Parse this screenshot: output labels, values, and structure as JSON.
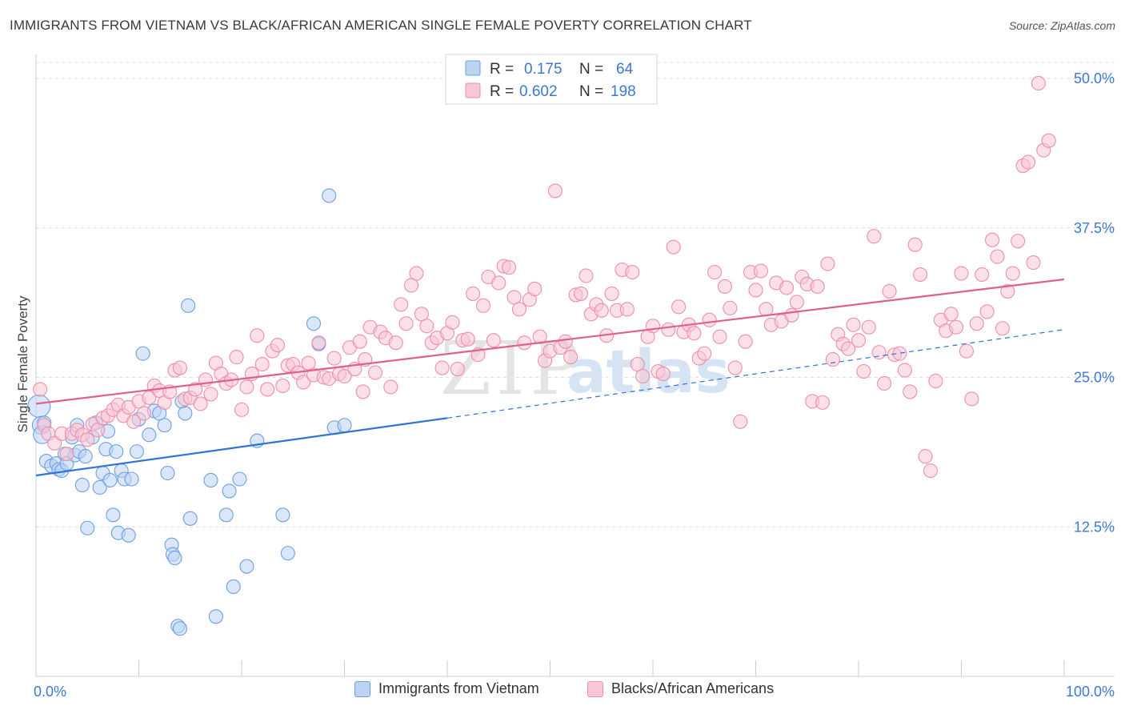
{
  "header": {
    "title": "IMMIGRANTS FROM VIETNAM VS BLACK/AFRICAN AMERICAN SINGLE FEMALE POVERTY CORRELATION CHART",
    "source": "Source: ZipAtlas.com"
  },
  "watermark": {
    "text_zip": "ZIP",
    "text_atlas": "atlas"
  },
  "chart_data": {
    "type": "scatter",
    "title": "IMMIGRANTS FROM VIETNAM VS BLACK/AFRICAN AMERICAN SINGLE FEMALE POVERTY CORRELATION CHART",
    "xlabel": "",
    "ylabel": "Single Female Poverty",
    "xlim": [
      0,
      100
    ],
    "ylim": [
      0,
      52
    ],
    "y_ticks": [
      12.5,
      25.0,
      37.5,
      50.0
    ],
    "y_tick_labels": [
      "12.5%",
      "25.0%",
      "37.5%",
      "50.0%"
    ],
    "x_tick_labels": [
      "0.0%",
      "100.0%"
    ],
    "grid": true,
    "legend_placement": "top-center",
    "stats": [
      {
        "r_label": "R =",
        "r_value": "0.175",
        "n_label": "N =",
        "n_value": "64"
      },
      {
        "r_label": "R =",
        "r_value": "0.602",
        "n_label": "N =",
        "n_value": "198"
      }
    ],
    "series": [
      {
        "name": "Immigrants from Vietnam",
        "color": "#6f9fe0",
        "fill": "#bcd3f5",
        "line_color": "#2f73d6",
        "trend": {
          "x0": 0,
          "y0": 16.8,
          "x1": 40,
          "y1": 21.6,
          "dash_to_x": 100,
          "dash_to_y": 29.0
        },
        "points": [
          [
            0.3,
            22.6
          ],
          [
            0.5,
            21.0
          ],
          [
            0.6,
            20.2
          ],
          [
            0.8,
            21.2
          ],
          [
            1.0,
            18.0
          ],
          [
            1.5,
            17.6
          ],
          [
            2.0,
            17.8
          ],
          [
            2.2,
            17.3
          ],
          [
            2.5,
            17.2
          ],
          [
            2.8,
            18.6
          ],
          [
            3.0,
            17.8
          ],
          [
            3.5,
            20.0
          ],
          [
            3.8,
            18.5
          ],
          [
            4.0,
            21.0
          ],
          [
            4.2,
            18.8
          ],
          [
            4.5,
            16.0
          ],
          [
            4.8,
            18.4
          ],
          [
            5.0,
            12.4
          ],
          [
            5.5,
            20.0
          ],
          [
            5.8,
            21.2
          ],
          [
            6.2,
            15.8
          ],
          [
            6.5,
            17.0
          ],
          [
            6.8,
            19.0
          ],
          [
            7.0,
            20.5
          ],
          [
            7.2,
            16.4
          ],
          [
            7.5,
            13.5
          ],
          [
            7.8,
            18.8
          ],
          [
            8.0,
            12.0
          ],
          [
            8.3,
            17.2
          ],
          [
            8.6,
            16.5
          ],
          [
            9.0,
            11.8
          ],
          [
            9.3,
            16.5
          ],
          [
            9.8,
            18.8
          ],
          [
            10.0,
            21.5
          ],
          [
            10.4,
            27.0
          ],
          [
            11.0,
            20.2
          ],
          [
            11.5,
            22.2
          ],
          [
            12.0,
            22.0
          ],
          [
            12.5,
            21.0
          ],
          [
            12.8,
            17.0
          ],
          [
            13.2,
            11.0
          ],
          [
            13.3,
            10.2
          ],
          [
            13.5,
            9.9
          ],
          [
            13.8,
            4.2
          ],
          [
            14.0,
            4.0
          ],
          [
            14.2,
            23.0
          ],
          [
            14.5,
            22.0
          ],
          [
            14.8,
            31.0
          ],
          [
            15.0,
            13.2
          ],
          [
            17.0,
            16.4
          ],
          [
            17.5,
            5.0
          ],
          [
            18.5,
            13.5
          ],
          [
            18.8,
            15.5
          ],
          [
            19.2,
            7.5
          ],
          [
            19.8,
            16.5
          ],
          [
            20.5,
            9.2
          ],
          [
            21.5,
            19.7
          ],
          [
            24.0,
            13.5
          ],
          [
            24.5,
            10.3
          ],
          [
            27.0,
            29.5
          ],
          [
            27.5,
            27.8
          ],
          [
            28.5,
            40.2
          ],
          [
            29.0,
            20.8
          ],
          [
            30.0,
            21.0
          ]
        ]
      },
      {
        "name": "Blacks/African Americans",
        "color": "#ee8fac",
        "fill": "#f8c7d6",
        "line_color": "#e0608a",
        "trend": {
          "x0": 0,
          "y0": 22.8,
          "x1": 100,
          "y1": 33.2
        },
        "points": [
          [
            0.4,
            24.0
          ],
          [
            0.8,
            21.0
          ],
          [
            1.2,
            20.3
          ],
          [
            1.8,
            19.5
          ],
          [
            2.5,
            20.3
          ],
          [
            3.0,
            18.6
          ],
          [
            3.5,
            20.3
          ],
          [
            4.0,
            20.6
          ],
          [
            4.5,
            20.2
          ],
          [
            5.0,
            19.8
          ],
          [
            5.5,
            21.1
          ],
          [
            6.0,
            20.6
          ],
          [
            6.5,
            21.6
          ],
          [
            7.0,
            21.8
          ],
          [
            7.5,
            22.3
          ],
          [
            8.0,
            22.7
          ],
          [
            8.5,
            21.8
          ],
          [
            9.0,
            22.5
          ],
          [
            9.5,
            21.3
          ],
          [
            10.0,
            23.0
          ],
          [
            10.5,
            22.0
          ],
          [
            11.0,
            23.3
          ],
          [
            11.5,
            24.3
          ],
          [
            12.0,
            23.9
          ],
          [
            12.5,
            22.9
          ],
          [
            13.0,
            23.8
          ],
          [
            13.5,
            25.6
          ],
          [
            14.0,
            25.8
          ],
          [
            14.5,
            23.2
          ],
          [
            15.0,
            23.3
          ],
          [
            15.5,
            24.0
          ],
          [
            16.0,
            22.8
          ],
          [
            16.5,
            24.8
          ],
          [
            17.0,
            23.6
          ],
          [
            17.5,
            26.2
          ],
          [
            18.0,
            25.3
          ],
          [
            18.5,
            24.5
          ],
          [
            19.0,
            24.8
          ],
          [
            19.5,
            26.7
          ],
          [
            20.0,
            22.3
          ],
          [
            20.5,
            24.2
          ],
          [
            21.0,
            25.3
          ],
          [
            21.5,
            28.5
          ],
          [
            22.0,
            26.1
          ],
          [
            22.5,
            24.0
          ],
          [
            23.0,
            27.2
          ],
          [
            23.5,
            27.7
          ],
          [
            24.0,
            24.3
          ],
          [
            24.5,
            26.0
          ],
          [
            25.0,
            26.1
          ],
          [
            25.5,
            25.4
          ],
          [
            26.0,
            24.6
          ],
          [
            26.5,
            26.2
          ],
          [
            27.0,
            25.2
          ],
          [
            27.5,
            27.9
          ],
          [
            28.0,
            25.0
          ],
          [
            28.5,
            24.9
          ],
          [
            29.0,
            26.6
          ],
          [
            29.5,
            25.3
          ],
          [
            30.0,
            25.1
          ],
          [
            30.5,
            27.5
          ],
          [
            31.0,
            25.7
          ],
          [
            31.5,
            28.0
          ],
          [
            32.0,
            26.5
          ],
          [
            32.5,
            29.2
          ],
          [
            33.0,
            25.4
          ],
          [
            33.5,
            28.8
          ],
          [
            34.0,
            28.3
          ],
          [
            34.5,
            24.2
          ],
          [
            35.0,
            27.9
          ],
          [
            35.5,
            31.1
          ],
          [
            36.0,
            29.5
          ],
          [
            36.5,
            32.7
          ],
          [
            37.0,
            33.7
          ],
          [
            37.5,
            30.3
          ],
          [
            38.0,
            29.3
          ],
          [
            38.5,
            27.9
          ],
          [
            39.0,
            28.3
          ],
          [
            39.5,
            25.8
          ],
          [
            40.0,
            28.7
          ],
          [
            40.5,
            29.6
          ],
          [
            41.0,
            25.7
          ],
          [
            41.5,
            28.1
          ],
          [
            42.0,
            28.2
          ],
          [
            42.5,
            32.0
          ],
          [
            43.0,
            26.9
          ],
          [
            43.5,
            31.0
          ],
          [
            44.0,
            33.4
          ],
          [
            44.5,
            28.1
          ],
          [
            45.0,
            32.9
          ],
          [
            45.5,
            34.3
          ],
          [
            46.0,
            34.2
          ],
          [
            46.5,
            31.7
          ],
          [
            47.0,
            30.7
          ],
          [
            47.5,
            27.9
          ],
          [
            48.0,
            31.5
          ],
          [
            48.5,
            32.4
          ],
          [
            49.0,
            28.4
          ],
          [
            49.5,
            26.4
          ],
          [
            50.0,
            27.2
          ],
          [
            50.5,
            40.6
          ],
          [
            51.0,
            27.5
          ],
          [
            51.5,
            28.0
          ],
          [
            52.0,
            26.7
          ],
          [
            52.5,
            31.9
          ],
          [
            53.0,
            32.0
          ],
          [
            53.5,
            33.5
          ],
          [
            54.0,
            30.3
          ],
          [
            54.5,
            31.1
          ],
          [
            55.0,
            30.6
          ],
          [
            55.5,
            28.5
          ],
          [
            56.0,
            32.0
          ],
          [
            56.5,
            30.6
          ],
          [
            57.0,
            34.0
          ],
          [
            57.5,
            30.7
          ],
          [
            58.0,
            33.8
          ],
          [
            58.5,
            26.1
          ],
          [
            59.0,
            25.1
          ],
          [
            59.5,
            28.4
          ],
          [
            60.0,
            29.3
          ],
          [
            60.5,
            25.5
          ],
          [
            61.0,
            25.3
          ],
          [
            61.5,
            29.0
          ],
          [
            62.0,
            35.9
          ],
          [
            62.5,
            30.9
          ],
          [
            63.0,
            28.8
          ],
          [
            63.5,
            29.4
          ],
          [
            64.0,
            28.7
          ],
          [
            64.5,
            26.6
          ],
          [
            65.0,
            27.0
          ],
          [
            65.5,
            29.8
          ],
          [
            66.0,
            33.8
          ],
          [
            66.5,
            28.4
          ],
          [
            67.0,
            32.6
          ],
          [
            67.5,
            30.8
          ],
          [
            68.0,
            25.8
          ],
          [
            68.5,
            21.3
          ],
          [
            69.0,
            28.0
          ],
          [
            69.5,
            33.8
          ],
          [
            70.0,
            32.3
          ],
          [
            70.5,
            33.9
          ],
          [
            71.0,
            30.7
          ],
          [
            71.5,
            29.4
          ],
          [
            72.0,
            32.9
          ],
          [
            72.5,
            29.7
          ],
          [
            73.0,
            32.5
          ],
          [
            73.5,
            30.2
          ],
          [
            74.0,
            31.3
          ],
          [
            74.5,
            33.4
          ],
          [
            75.0,
            32.8
          ],
          [
            75.5,
            23.0
          ],
          [
            76.0,
            32.6
          ],
          [
            76.5,
            22.9
          ],
          [
            77.0,
            34.5
          ],
          [
            77.5,
            26.5
          ],
          [
            78.0,
            28.6
          ],
          [
            78.5,
            27.8
          ],
          [
            79.0,
            27.4
          ],
          [
            79.5,
            29.4
          ],
          [
            80.0,
            28.1
          ],
          [
            80.5,
            25.5
          ],
          [
            81.0,
            29.2
          ],
          [
            81.5,
            36.8
          ],
          [
            82.0,
            27.1
          ],
          [
            82.5,
            24.5
          ],
          [
            83.0,
            32.2
          ],
          [
            83.5,
            26.9
          ],
          [
            84.0,
            27.0
          ],
          [
            84.5,
            25.6
          ],
          [
            85.0,
            23.8
          ],
          [
            85.5,
            36.1
          ],
          [
            86.0,
            33.6
          ],
          [
            86.5,
            18.4
          ],
          [
            87.0,
            17.2
          ],
          [
            87.5,
            24.7
          ],
          [
            88.0,
            29.8
          ],
          [
            88.5,
            28.9
          ],
          [
            89.0,
            30.3
          ],
          [
            89.5,
            29.2
          ],
          [
            90.0,
            33.7
          ],
          [
            90.5,
            27.2
          ],
          [
            91.0,
            23.2
          ],
          [
            91.5,
            29.5
          ],
          [
            92.0,
            33.6
          ],
          [
            92.5,
            30.5
          ],
          [
            93.0,
            36.5
          ],
          [
            93.5,
            35.1
          ],
          [
            94.0,
            29.1
          ],
          [
            94.5,
            32.2
          ],
          [
            95.0,
            33.7
          ],
          [
            95.5,
            36.4
          ],
          [
            96.0,
            42.7
          ],
          [
            96.5,
            43.0
          ],
          [
            97.0,
            34.6
          ],
          [
            97.5,
            49.6
          ],
          [
            98.0,
            44.0
          ],
          [
            98.5,
            44.8
          ],
          [
            31.8,
            23.8
          ]
        ]
      }
    ]
  },
  "bottom_legend": [
    {
      "label": "Immigrants from Vietnam",
      "color": "#bcd3f5",
      "border": "#6f9fe0"
    },
    {
      "label": "Blacks/African Americans",
      "color": "#f8c7d6",
      "border": "#ee8fac"
    }
  ]
}
